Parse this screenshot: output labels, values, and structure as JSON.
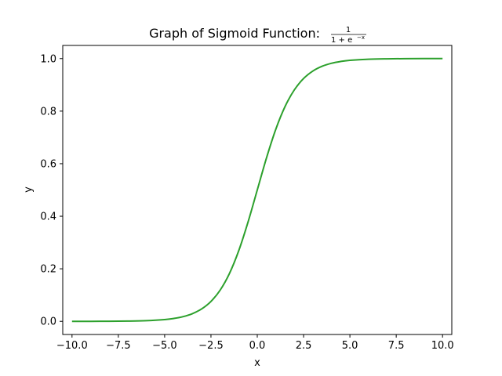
{
  "chart_data": {
    "type": "line",
    "title": "Graph of Sigmoid Function:",
    "title_formula": {
      "numerator": "1",
      "denominator": "1 + e",
      "exponent": "−x"
    },
    "xlabel": "x",
    "ylabel": "y",
    "xlim": [
      -10.5,
      10.5
    ],
    "ylim": [
      -0.05,
      1.05
    ],
    "xticks": [
      -10.0,
      -7.5,
      -5.0,
      -2.5,
      0.0,
      2.5,
      5.0,
      7.5,
      10.0
    ],
    "xtick_labels": [
      "−10.0",
      "−7.5",
      "−5.0",
      "−2.5",
      "0.0",
      "2.5",
      "5.0",
      "7.5",
      "10.0"
    ],
    "yticks": [
      0.0,
      0.2,
      0.4,
      0.6,
      0.8,
      1.0
    ],
    "ytick_labels": [
      "0.0",
      "0.2",
      "0.4",
      "0.6",
      "0.8",
      "1.0"
    ],
    "grid": false,
    "series": [
      {
        "color": "#2ca02c",
        "x": [
          -10,
          -9,
          -8,
          -7,
          -6,
          -5,
          -4.5,
          -4,
          -3.5,
          -3,
          -2.5,
          -2,
          -1.5,
          -1,
          -0.5,
          0,
          0.5,
          1,
          1.5,
          2,
          2.5,
          3,
          3.5,
          4,
          4.5,
          5,
          6,
          7,
          8,
          9,
          10
        ],
        "y": [
          4.54e-05,
          0.0001234,
          0.0003354,
          0.000911,
          0.002473,
          0.006693,
          0.01099,
          0.01799,
          0.02931,
          0.04743,
          0.07586,
          0.1192,
          0.1824,
          0.2689,
          0.3775,
          0.5,
          0.6225,
          0.7311,
          0.8176,
          0.8808,
          0.9241,
          0.9526,
          0.9707,
          0.982,
          0.989,
          0.9933,
          0.9975,
          0.9991,
          0.9997,
          0.9999,
          1.0
        ]
      }
    ]
  }
}
